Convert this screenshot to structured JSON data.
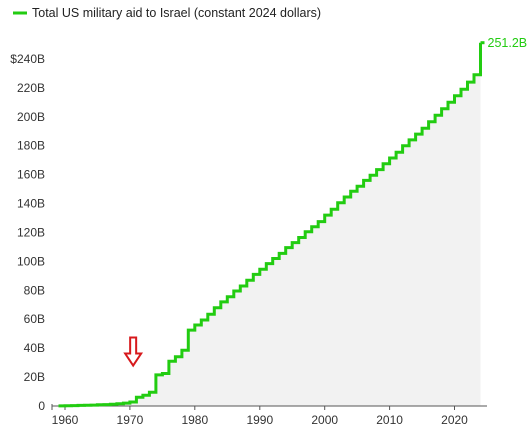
{
  "chart_data": {
    "type": "line",
    "title": "",
    "xlabel": "",
    "ylabel": "",
    "line_style": "step",
    "area_fill": true,
    "grid": false,
    "legend": {
      "position": "top-left",
      "label": "Total US military aid to Israel (constant 2024 dollars)"
    },
    "end_label": "251.2B",
    "xlim": [
      1958,
      2025
    ],
    "ylim": [
      0,
      260
    ],
    "x_ticks": [
      1960,
      1970,
      1980,
      1990,
      2000,
      2010,
      2020
    ],
    "x_tick_labels": [
      "1960",
      "1970",
      "1980",
      "1990",
      "2000",
      "2010",
      "2020"
    ],
    "y_ticks": [
      0,
      20,
      40,
      60,
      80,
      100,
      120,
      140,
      160,
      180,
      200,
      220,
      240
    ],
    "y_tick_labels": [
      "0",
      "20B",
      "40B",
      "60B",
      "80B",
      "100B",
      "120B",
      "140B",
      "160B",
      "180B",
      "200B",
      "220B",
      "$240B"
    ],
    "annotation": {
      "type": "arrow",
      "x": 1970.5,
      "y": 10,
      "color": "#d7191c"
    },
    "series": [
      {
        "name": "Total US military aid to Israel (constant 2024 dollars)",
        "color": "#22cc11",
        "x": [
          1959,
          1960,
          1961,
          1962,
          1963,
          1964,
          1965,
          1966,
          1967,
          1968,
          1969,
          1970,
          1971,
          1972,
          1973,
          1974,
          1975,
          1976,
          1977,
          1978,
          1979,
          1980,
          1981,
          1982,
          1983,
          1984,
          1985,
          1986,
          1987,
          1988,
          1989,
          1990,
          1991,
          1992,
          1993,
          1994,
          1995,
          1996,
          1997,
          1998,
          1999,
          2000,
          2001,
          2002,
          2003,
          2004,
          2005,
          2006,
          2007,
          2008,
          2009,
          2010,
          2011,
          2012,
          2013,
          2014,
          2015,
          2016,
          2017,
          2018,
          2019,
          2020,
          2021,
          2022,
          2023
        ],
        "values": [
          0.1,
          0.2,
          0.3,
          0.4,
          0.5,
          0.6,
          0.8,
          1.0,
          1.2,
          1.5,
          2.0,
          2.8,
          6.0,
          7.5,
          9.5,
          21.5,
          22.5,
          31.0,
          34.0,
          38.5,
          52.5,
          56.0,
          59.5,
          63.5,
          68.0,
          72.0,
          75.5,
          79.5,
          83.0,
          87.0,
          91.0,
          94.5,
          98.5,
          102.0,
          105.5,
          109.5,
          113.0,
          116.5,
          120.5,
          124.0,
          127.5,
          132.0,
          136.0,
          140.5,
          144.5,
          148.5,
          152.0,
          156.0,
          159.5,
          163.5,
          167.5,
          171.5,
          175.5,
          180.0,
          184.0,
          188.0,
          192.0,
          196.5,
          201.0,
          205.5,
          210.0,
          214.5,
          219.0,
          224.0,
          229.0
        ],
        "final_value": 251.2
      }
    ]
  }
}
